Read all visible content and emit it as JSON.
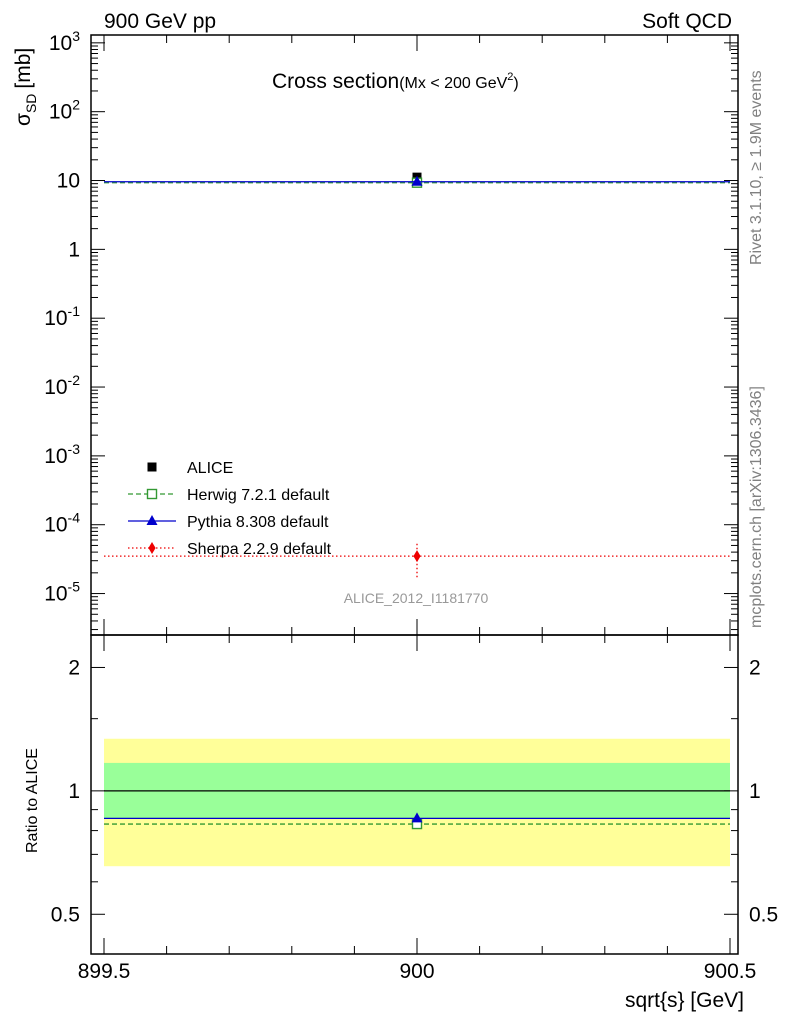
{
  "header": {
    "left": "900 GeV pp",
    "right": "Soft QCD"
  },
  "side_text": {
    "upper": "Rivet 3.1.10, ≥ 1.9M events",
    "lower": "mcplots.cern.ch [arXiv:1306.3436]"
  },
  "chart_data": [
    {
      "type": "scatter",
      "title": "Cross section",
      "title_sub": "(Mx < 200 GeV",
      "title_sup": "2",
      "title_close": ")",
      "ylabel": "σ",
      "ylabel_sub": "SD",
      "ylabel_unit": "[mb]",
      "yscale": "log",
      "ylim": [
        2.5e-06,
        1300
      ],
      "xlim": [
        899.5,
        900.5
      ],
      "y_tick_labels": [
        "10^3",
        "10^2",
        "10",
        "1",
        "10^-1",
        "10^-2",
        "10^-3",
        "10^-4",
        "10^-5"
      ],
      "watermark": "ALICE_2012_I1181770",
      "legend_position": "lower-left",
      "grid": false,
      "series": [
        {
          "name": "ALICE",
          "color": "#000000",
          "marker": "square-filled",
          "line": "none",
          "x": [
            900
          ],
          "y": [
            11.2
          ],
          "yerr": [
            1.2
          ]
        },
        {
          "name": "Herwig 7.2.1 default",
          "color": "#339933",
          "marker": "square-open",
          "line": "dashed",
          "x": [
            900
          ],
          "y": [
            9.3
          ],
          "yerr": [
            0
          ]
        },
        {
          "name": "Pythia 8.308 default",
          "color": "#0000cc",
          "marker": "triangle-filled",
          "line": "solid",
          "x": [
            900
          ],
          "y": [
            9.6
          ],
          "yerr": [
            0
          ]
        },
        {
          "name": "Sherpa 2.2.9 default",
          "color": "#ee0000",
          "marker": "diamond-filled",
          "line": "dotted",
          "x": [
            900
          ],
          "y": [
            3.5e-05
          ],
          "yerr": [
            1.8e-05
          ]
        }
      ]
    },
    {
      "type": "scatter",
      "ylabel": "Ratio to ALICE",
      "xlabel": "sqrt{s} [GeV]",
      "yscale": "log",
      "ylim": [
        0.4,
        2.4
      ],
      "xlim": [
        899.5,
        900.5
      ],
      "x_ticks": [
        "899.5",
        "900",
        "900.5"
      ],
      "y_ticks": [
        0.5,
        1,
        2
      ],
      "y_tick_labels": [
        "0.5",
        "1",
        "2"
      ],
      "bands": [
        {
          "color": "#ffff99",
          "low": 0.655,
          "high": 1.34
        },
        {
          "color": "#99ff99",
          "low": 0.855,
          "high": 1.17
        }
      ],
      "series": [
        {
          "name": "Herwig 7.2.1 default",
          "color": "#339933",
          "marker": "square-open",
          "line": "dashed",
          "x": [
            900
          ],
          "y": [
            0.83
          ]
        },
        {
          "name": "Pythia 8.308 default",
          "color": "#0000cc",
          "marker": "triangle-filled",
          "line": "solid",
          "x": [
            900
          ],
          "y": [
            0.857
          ]
        }
      ]
    }
  ]
}
